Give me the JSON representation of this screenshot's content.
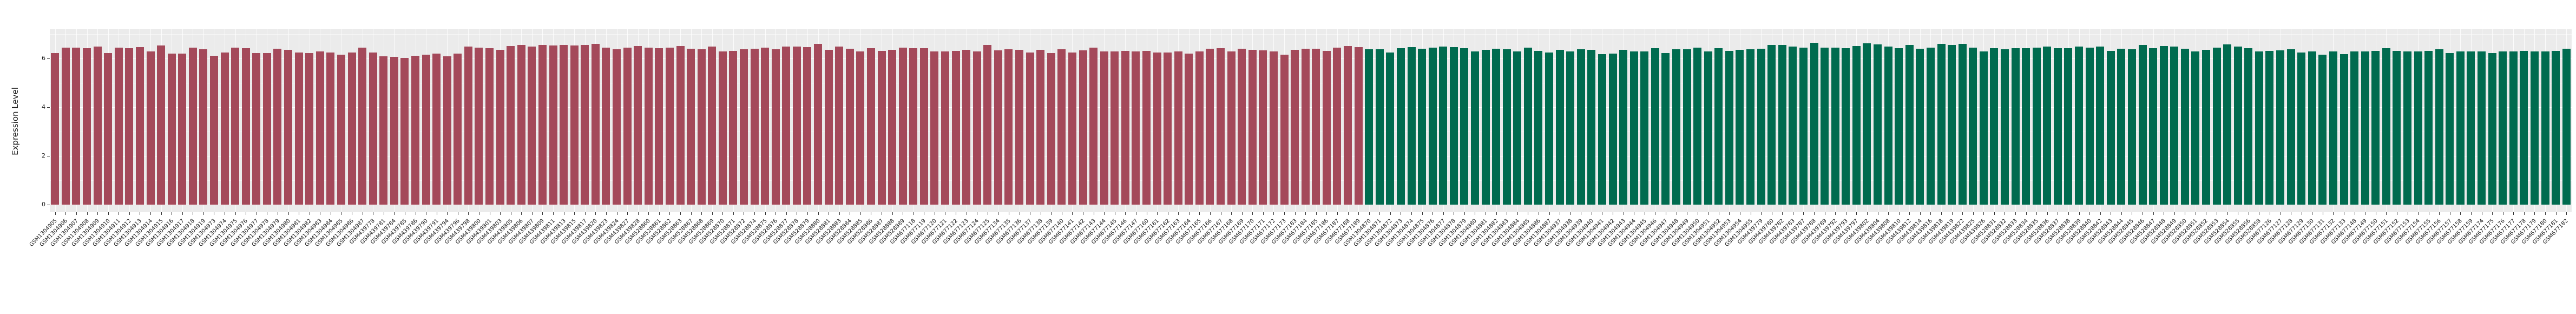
{
  "chart_data": {
    "type": "bar",
    "title": "",
    "xlabel": "",
    "ylabel": "Expression Level",
    "ylim": [
      0,
      7.2
    ],
    "yticks": [
      0,
      2,
      4,
      6
    ],
    "yticks_minor": [
      1,
      3,
      5,
      7
    ],
    "grid": "on",
    "legend": "none",
    "panel_background": "#EBEBEB",
    "gridline_color": "#FFFFFF",
    "axis_text_color": "#1a1a1a",
    "series": [
      {
        "name": "group-red",
        "color": "#A4495A",
        "samples": [
          "GSM1304905",
          "GSM1304906",
          "GSM1304907",
          "GSM1304908",
          "GSM1304909",
          "GSM1304910",
          "GSM1304911",
          "GSM1304912",
          "GSM1304913",
          "GSM1304914",
          "GSM1304915",
          "GSM1304916",
          "GSM1304917",
          "GSM1304918",
          "GSM1304919",
          "GSM1304973",
          "GSM1304974",
          "GSM1304975",
          "GSM1304976",
          "GSM1304977",
          "GSM1304978",
          "GSM1304979",
          "GSM1304980",
          "GSM1304981",
          "GSM1304982",
          "GSM1304983",
          "GSM1304984",
          "GSM1304985",
          "GSM1304986",
          "GSM1304987",
          "GSM439778",
          "GSM439781",
          "GSM439784",
          "GSM439785",
          "GSM439786",
          "GSM439790",
          "GSM439791",
          "GSM439794",
          "GSM439796",
          "GSM439798",
          "GSM439800",
          "GSM439801",
          "GSM439803",
          "GSM439805",
          "GSM439806",
          "GSM439807",
          "GSM439809",
          "GSM439811",
          "GSM439813",
          "GSM439815",
          "GSM439817",
          "GSM439820",
          "GSM439823",
          "GSM439824",
          "GSM439827",
          "GSM439828",
          "GSM528860",
          "GSM528861",
          "GSM528862",
          "GSM528863",
          "GSM528867",
          "GSM528868",
          "GSM528869",
          "GSM528870",
          "GSM528871",
          "GSM528872",
          "GSM528874",
          "GSM528875",
          "GSM528876",
          "GSM528877",
          "GSM528878",
          "GSM528879",
          "GSM528880",
          "GSM528881",
          "GSM528883",
          "GSM528884",
          "GSM528885",
          "GSM528886",
          "GSM528887",
          "GSM528888",
          "GSM528889",
          "GSM677118",
          "GSM677119",
          "GSM677120",
          "GSM677121",
          "GSM677122",
          "GSM677123",
          "GSM677124",
          "GSM677125",
          "GSM677134",
          "GSM677135",
          "GSM677136",
          "GSM677137",
          "GSM677138",
          "GSM677139",
          "GSM677140",
          "GSM677141",
          "GSM677142",
          "GSM677143",
          "GSM677144",
          "GSM677145",
          "GSM677146",
          "GSM677147",
          "GSM677160",
          "GSM677161",
          "GSM677162",
          "GSM677163",
          "GSM677164",
          "GSM677165",
          "GSM677166",
          "GSM677167",
          "GSM677168",
          "GSM677169",
          "GSM677170",
          "GSM677171",
          "GSM677172",
          "GSM677173",
          "GSM677183",
          "GSM677184",
          "GSM677185",
          "GSM677186",
          "GSM677187",
          "GSM677188",
          "GSM677189"
        ],
        "values": [
          6.22,
          6.45,
          6.44,
          6.42,
          6.5,
          6.22,
          6.44,
          6.42,
          6.46,
          6.3,
          6.53,
          6.21,
          6.19,
          6.45,
          6.37,
          6.12,
          6.25,
          6.45,
          6.42,
          6.22,
          6.22,
          6.4,
          6.35,
          6.25,
          6.22,
          6.3,
          6.25,
          6.15,
          6.25,
          6.45,
          6.25,
          6.1,
          6.06,
          6.02,
          6.12,
          6.16,
          6.2,
          6.1,
          6.2,
          6.48,
          6.45,
          6.42,
          6.35,
          6.52,
          6.55,
          6.5,
          6.56,
          6.53,
          6.56,
          6.54,
          6.56,
          6.6,
          6.45,
          6.38,
          6.45,
          6.52,
          6.45,
          6.42,
          6.45,
          6.52,
          6.4,
          6.38,
          6.48,
          6.3,
          6.32,
          6.38,
          6.4,
          6.45,
          6.38,
          6.5,
          6.48,
          6.46,
          6.6,
          6.35,
          6.5,
          6.4,
          6.3,
          6.42,
          6.32,
          6.35,
          6.45,
          6.42,
          6.43,
          6.28,
          6.28,
          6.32,
          6.35,
          6.3,
          6.55,
          6.33,
          6.38,
          6.35,
          6.25,
          6.35,
          6.22,
          6.38,
          6.25,
          6.33,
          6.45,
          6.28,
          6.3,
          6.32,
          6.28,
          6.32,
          6.25,
          6.25,
          6.3,
          6.2,
          6.28,
          6.4,
          6.42,
          6.3,
          6.4,
          6.35,
          6.33,
          6.28,
          6.15,
          6.35,
          6.4,
          6.4,
          6.31,
          6.45,
          6.52,
          6.47
        ]
      },
      {
        "name": "group-green",
        "color": "#006B4F",
        "samples": [
          "GSM1304870",
          "GSM1304871",
          "GSM1304872",
          "GSM1304873",
          "GSM1304874",
          "GSM1304875",
          "GSM1304876",
          "GSM1304877",
          "GSM1304878",
          "GSM1304879",
          "GSM1304880",
          "GSM1304881",
          "GSM1304882",
          "GSM1304883",
          "GSM1304884",
          "GSM1304885",
          "GSM1304886",
          "GSM1304887",
          "GSM1304937",
          "GSM1304938",
          "GSM1304939",
          "GSM1304940",
          "GSM1304941",
          "GSM1304942",
          "GSM1304943",
          "GSM1304944",
          "GSM1304945",
          "GSM1304946",
          "GSM1304947",
          "GSM1304948",
          "GSM1304949",
          "GSM1304950",
          "GSM1304951",
          "GSM1304952",
          "GSM1304953",
          "GSM1304954",
          "GSM1304955",
          "GSM439779",
          "GSM439780",
          "GSM439782",
          "GSM439783",
          "GSM439787",
          "GSM439788",
          "GSM439789",
          "GSM439792",
          "GSM439793",
          "GSM439797",
          "GSM439802",
          "GSM439804",
          "GSM439808",
          "GSM439810",
          "GSM439812",
          "GSM439814",
          "GSM439816",
          "GSM439818",
          "GSM439819",
          "GSM439822",
          "GSM439825",
          "GSM439826",
          "GSM528831",
          "GSM528832",
          "GSM528833",
          "GSM528834",
          "GSM528835",
          "GSM528836",
          "GSM528837",
          "GSM528838",
          "GSM528839",
          "GSM528840",
          "GSM528842",
          "GSM528843",
          "GSM528844",
          "GSM528845",
          "GSM528846",
          "GSM528847",
          "GSM528848",
          "GSM528849",
          "GSM528850",
          "GSM528851",
          "GSM528852",
          "GSM528853",
          "GSM528854",
          "GSM528855",
          "GSM528856",
          "GSM528858",
          "GSM677126",
          "GSM677127",
          "GSM677128",
          "GSM677129",
          "GSM677130",
          "GSM677131",
          "GSM677132",
          "GSM677133",
          "GSM677148",
          "GSM677149",
          "GSM677150",
          "GSM677151",
          "GSM677152",
          "GSM677153",
          "GSM677154",
          "GSM677155",
          "GSM677156",
          "GSM677157",
          "GSM677158",
          "GSM677159",
          "GSM677174",
          "GSM677175",
          "GSM677176",
          "GSM677177",
          "GSM677178",
          "GSM677179",
          "GSM677180",
          "GSM677181",
          "GSM677182"
        ],
        "values": [
          6.38,
          6.37,
          6.25,
          6.42,
          6.46,
          6.41,
          6.45,
          6.5,
          6.47,
          6.42,
          6.3,
          6.35,
          6.4,
          6.38,
          6.3,
          6.45,
          6.32,
          6.24,
          6.35,
          6.3,
          6.37,
          6.35,
          6.18,
          6.21,
          6.35,
          6.28,
          6.3,
          6.42,
          6.22,
          6.37,
          6.37,
          6.45,
          6.3,
          6.42,
          6.32,
          6.35,
          6.37,
          6.4,
          6.55,
          6.55,
          6.48,
          6.45,
          6.65,
          6.45,
          6.45,
          6.42,
          6.52,
          6.62,
          6.58,
          6.5,
          6.42,
          6.55,
          6.4,
          6.45,
          6.6,
          6.55,
          6.6,
          6.45,
          6.3,
          6.42,
          6.38,
          6.42,
          6.42,
          6.45,
          6.5,
          6.42,
          6.43,
          6.48,
          6.45,
          6.5,
          6.32,
          6.4,
          6.38,
          6.55,
          6.42,
          6.52,
          6.48,
          6.4,
          6.3,
          6.35,
          6.45,
          6.58,
          6.5,
          6.42,
          6.28,
          6.32,
          6.33,
          6.38,
          6.25,
          6.3,
          6.15,
          6.28,
          6.18,
          6.28,
          6.3,
          6.32,
          6.42,
          6.32,
          6.28,
          6.3,
          6.32,
          6.38,
          6.22,
          6.28,
          6.3,
          6.3,
          6.22,
          6.28,
          6.3,
          6.32,
          6.3,
          6.28,
          6.32,
          6.4
        ]
      }
    ]
  }
}
